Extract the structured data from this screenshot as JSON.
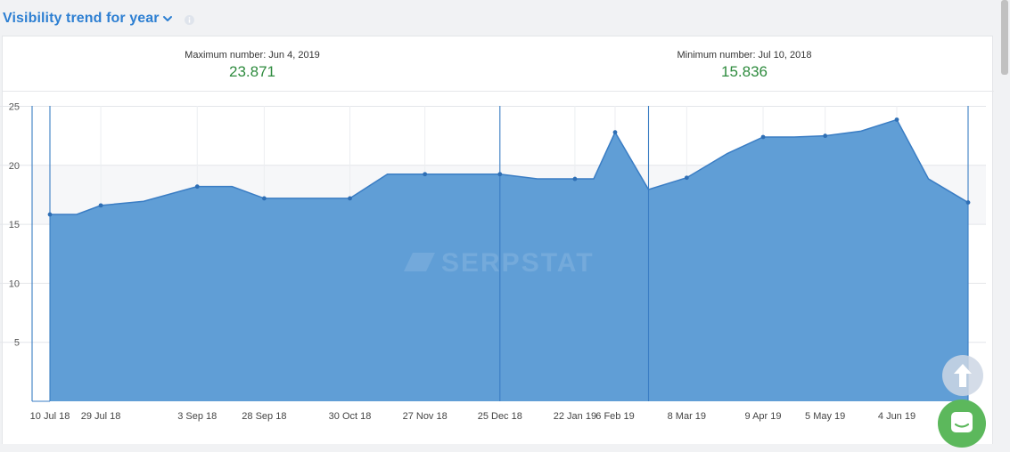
{
  "header": {
    "title": "Visibility trend for year"
  },
  "stats": {
    "max_label": "Maximum number: Jun 4, 2019",
    "max_value": "23.871",
    "min_label": "Minimum number: Jul 10, 2018",
    "min_value": "15.836"
  },
  "watermark": "SERPSTAT",
  "colors": {
    "accent": "#2d7fd2",
    "area_fill": "#5b9bd5",
    "line": "#3a7dc4",
    "value_green": "#2e8b3e",
    "chat_button": "#5cb85c"
  },
  "icons": {
    "dropdown": "chevron-down-icon",
    "info": "info-icon",
    "scroll_top": "arrow-up-icon",
    "chat": "chat-icon"
  },
  "chart_data": {
    "type": "area",
    "ylim": [
      0,
      25
    ],
    "yticks": [
      5,
      10,
      15,
      20,
      25
    ],
    "xtick_labels": [
      "10 Jul 18",
      "29 Jul 18",
      "3 Sep 18",
      "28 Sep 18",
      "30 Oct 18",
      "27 Nov 18",
      "25 Dec 18",
      "22 Jan 19",
      "6 Feb 19",
      "8 Mar 19",
      "9 Apr 19",
      "5 May 19",
      "4 Jun 19"
    ],
    "grid": true,
    "points": [
      {
        "x": "10 Jul 18",
        "y": 15.836,
        "marker": true
      },
      {
        "x": "20 Jul 18",
        "y": 15.84,
        "marker": false
      },
      {
        "x": "29 Jul 18",
        "y": 16.6,
        "marker": true
      },
      {
        "x": "14 Aug 18",
        "y": 16.95,
        "marker": false
      },
      {
        "x": "3 Sep 18",
        "y": 18.2,
        "marker": true
      },
      {
        "x": "16 Sep 18",
        "y": 18.2,
        "marker": false
      },
      {
        "x": "28 Sep 18",
        "y": 17.2,
        "marker": true
      },
      {
        "x": "14 Oct 18",
        "y": 17.2,
        "marker": false
      },
      {
        "x": "30 Oct 18",
        "y": 17.2,
        "marker": true
      },
      {
        "x": "13 Nov 18",
        "y": 19.25,
        "marker": false
      },
      {
        "x": "27 Nov 18",
        "y": 19.25,
        "marker": true
      },
      {
        "x": "11 Dec 18",
        "y": 19.25,
        "marker": false
      },
      {
        "x": "25 Dec 18",
        "y": 19.25,
        "marker": true
      },
      {
        "x": "8 Jan 19",
        "y": 18.85,
        "marker": false
      },
      {
        "x": "22 Jan 19",
        "y": 18.85,
        "marker": true
      },
      {
        "x": "29 Jan 19",
        "y": 18.85,
        "marker": false
      },
      {
        "x": "6 Feb 19",
        "y": 22.8,
        "marker": true
      },
      {
        "x": "20 Feb 19",
        "y": 17.95,
        "marker": false
      },
      {
        "x": "8 Mar 19",
        "y": 18.95,
        "marker": true
      },
      {
        "x": "25 Mar 19",
        "y": 21.0,
        "marker": false
      },
      {
        "x": "9 Apr 19",
        "y": 22.4,
        "marker": true
      },
      {
        "x": "22 Apr 19",
        "y": 22.4,
        "marker": false
      },
      {
        "x": "5 May 19",
        "y": 22.5,
        "marker": true
      },
      {
        "x": "20 May 19",
        "y": 22.9,
        "marker": false
      },
      {
        "x": "4 Jun 19",
        "y": 23.871,
        "marker": true
      },
      {
        "x": "20 Jun 19",
        "y": 18.85,
        "marker": false
      },
      {
        "x": "10 Jul 19",
        "y": 16.85,
        "marker": true
      }
    ],
    "event_markers": [
      "10 Jul 18",
      "25 Dec 18",
      "20 Feb 19",
      "10 Jul 19"
    ]
  }
}
